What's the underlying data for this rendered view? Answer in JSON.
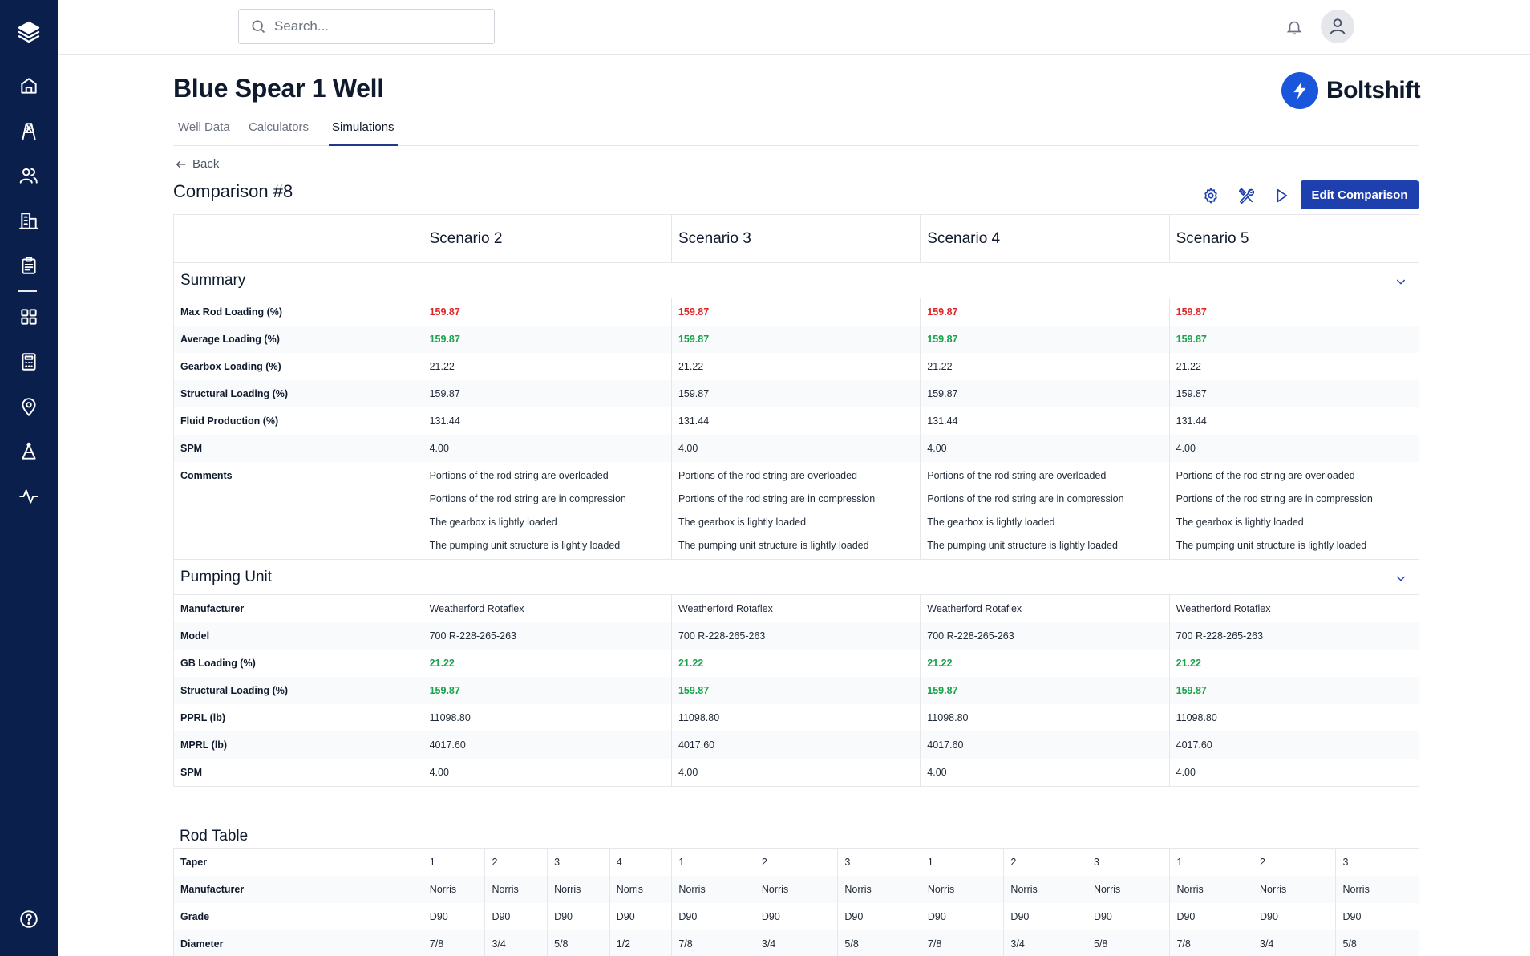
{
  "topbar": {
    "search_placeholder": "Search..."
  },
  "page": {
    "title": "Blue Spear 1 Well",
    "brand": "Boltshift"
  },
  "tabs": [
    {
      "label": "Well Data",
      "active": false
    },
    {
      "label": "Calculators",
      "active": false
    },
    {
      "label": "Simulations",
      "active": true
    }
  ],
  "back_label": "Back",
  "comparison_title": "Comparison #8",
  "edit_label": "Edit Comparison",
  "scenarios": [
    "Scenario 2",
    "Scenario 3",
    "Scenario 4",
    "Scenario 5"
  ],
  "summary": {
    "title": "Summary",
    "rows": [
      {
        "label": "Max Rod Loading (%)",
        "values": [
          "159.87",
          "159.87",
          "159.87",
          "159.87"
        ],
        "status": "red"
      },
      {
        "label": "Average Loading (%)",
        "values": [
          "159.87",
          "159.87",
          "159.87",
          "159.87"
        ],
        "status": "green"
      },
      {
        "label": "Gearbox Loading (%)",
        "values": [
          "21.22",
          "21.22",
          "21.22",
          "21.22"
        ],
        "status": "normal"
      },
      {
        "label": "Structural Loading (%)",
        "values": [
          "159.87",
          "159.87",
          "159.87",
          "159.87"
        ],
        "status": "normal"
      },
      {
        "label": "Fluid Production (%)",
        "values": [
          "131.44",
          "131.44",
          "131.44",
          "131.44"
        ],
        "status": "normal"
      },
      {
        "label": "SPM",
        "values": [
          "4.00",
          "4.00",
          "4.00",
          "4.00"
        ],
        "status": "normal"
      }
    ],
    "comments_label": "Comments",
    "comments": [
      "Portions of the rod string are overloaded",
      "Portions of the rod string are in compression",
      "The gearbox is lightly loaded",
      "The pumping unit structure is lightly loaded"
    ]
  },
  "pumping_unit": {
    "title": "Pumping Unit",
    "rows": [
      {
        "label": "Manufacturer",
        "values": [
          "Weatherford Rotaflex",
          "Weatherford Rotaflex",
          "Weatherford Rotaflex",
          "Weatherford Rotaflex"
        ],
        "status": "normal"
      },
      {
        "label": "Model",
        "values": [
          "700 R-228-265-263",
          "700 R-228-265-263",
          "700 R-228-265-263",
          "700 R-228-265-263"
        ],
        "status": "normal"
      },
      {
        "label": "GB Loading (%)",
        "values": [
          "21.22",
          "21.22",
          "21.22",
          "21.22"
        ],
        "status": "green"
      },
      {
        "label": "Structural Loading (%)",
        "values": [
          "159.87",
          "159.87",
          "159.87",
          "159.87"
        ],
        "status": "green"
      },
      {
        "label": "PPRL (lb)",
        "values": [
          "11098.80",
          "11098.80",
          "11098.80",
          "11098.80"
        ],
        "status": "normal"
      },
      {
        "label": "MPRL (lb)",
        "values": [
          "4017.60",
          "4017.60",
          "4017.60",
          "4017.60"
        ],
        "status": "normal"
      },
      {
        "label": "SPM",
        "values": [
          "4.00",
          "4.00",
          "4.00",
          "4.00"
        ],
        "status": "normal"
      }
    ]
  },
  "rod_table": {
    "title": "Rod Table",
    "rows": [
      {
        "label": "Taper",
        "groups": [
          [
            "1",
            "2",
            "3",
            "4"
          ],
          [
            "1",
            "2",
            "3"
          ],
          [
            "1",
            "2",
            "3"
          ],
          [
            "1",
            "2",
            "3"
          ]
        ]
      },
      {
        "label": "Manufacturer",
        "groups": [
          [
            "Norris",
            "Norris",
            "Norris",
            "Norris"
          ],
          [
            "Norris",
            "Norris",
            "Norris"
          ],
          [
            "Norris",
            "Norris",
            "Norris"
          ],
          [
            "Norris",
            "Norris",
            "Norris"
          ]
        ]
      },
      {
        "label": "Grade",
        "groups": [
          [
            "D90",
            "D90",
            "D90",
            "D90"
          ],
          [
            "D90",
            "D90",
            "D90"
          ],
          [
            "D90",
            "D90",
            "D90"
          ],
          [
            "D90",
            "D90",
            "D90"
          ]
        ]
      },
      {
        "label": "Diameter",
        "groups": [
          [
            "7/8",
            "3/4",
            "5/8",
            "1/2"
          ],
          [
            "7/8",
            "3/4",
            "5/8"
          ],
          [
            "7/8",
            "3/4",
            "5/8"
          ],
          [
            "7/8",
            "3/4",
            "5/8"
          ]
        ]
      }
    ]
  },
  "colors": {
    "sidebar": "#0b1f4d",
    "accent": "#1e40af",
    "danger": "#dc2626",
    "success": "#16a34a"
  }
}
